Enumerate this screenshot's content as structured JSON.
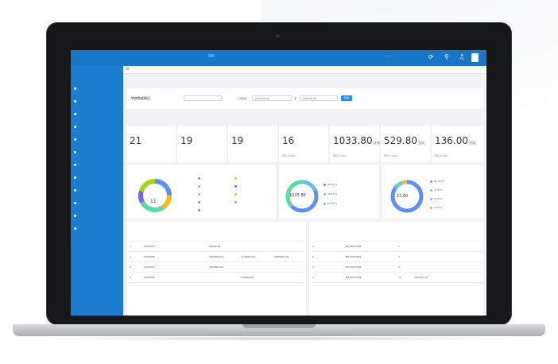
{
  "topnav": {
    "items": [
      "",
      "",
      "",
      "",
      "",
      "",
      "",
      "",
      "",
      "",
      "···"
    ],
    "active_index": 3
  },
  "sidebar": {
    "title": "",
    "items": [
      "",
      "",
      "",
      "",
      "",
      "",
      "",
      "",
      "",
      "",
      "",
      ""
    ]
  },
  "filter": {
    "title": "销售数据概况",
    "date_label": "日期选择",
    "date_start": "2020-01-01",
    "date_sep": "至",
    "date_end": "2020-07-14",
    "query_label": "查询"
  },
  "cards": [
    {
      "label": "",
      "value": "21",
      "unit": "",
      "sub1": "",
      "sub2": ""
    },
    {
      "label": "",
      "value": "19",
      "unit": "",
      "sub1": "",
      "sub2": ""
    },
    {
      "label": "",
      "value": "19",
      "unit": "",
      "sub1": "",
      "sub2": ""
    },
    {
      "label": "",
      "value": "16",
      "unit": "",
      "sub1": "",
      "sub2": "同比 0.00%"
    },
    {
      "label": "",
      "value": "1033.80",
      "unit": "万元",
      "sub1": "",
      "sub2": "同比 0.00%"
    },
    {
      "label": "",
      "value": "529.80",
      "unit": "万元",
      "sub1": "",
      "sub2": "同比 0.00%"
    },
    {
      "label": "",
      "value": "136.00",
      "unit": "万元",
      "sub1": "",
      "sub2": "同比 0.00%"
    }
  ],
  "donut1": {
    "title": "",
    "center_value": "11",
    "legend": [
      "",
      "",
      "",
      "",
      "",
      "",
      "",
      "",
      "",
      ""
    ],
    "colors": [
      "#5b8ff9",
      "#f6bd16",
      "#5ad8a6",
      "#7262fd",
      "#5dc4f0",
      "#a0d911",
      "#5b8ff9",
      "#f6903d",
      "#e8684a",
      "#9270ca"
    ]
  },
  "donut2": {
    "title": "",
    "center_value": "1033.80",
    "legend": [
      "",
      "",
      ""
    ],
    "percents": [
      "45.27 %",
      "26.76 %",
      "17.87 %"
    ],
    "colors": [
      "#5b8ff9",
      "#5ad8a6",
      "#5dc4f0"
    ]
  },
  "donut3": {
    "title": "",
    "center_value": "21.00",
    "legend": [
      "",
      "",
      "",
      ""
    ],
    "percents": [
      "85.71 %",
      "4.76 %",
      "4.76 %",
      "4.76 %"
    ],
    "colors": [
      "#5b8ff9",
      "#5ad8a6",
      "#5dc4f0",
      "#f6bd16"
    ]
  },
  "table_left": {
    "title": "",
    "columns": [
      "",
      "",
      "",
      "",
      "",
      ""
    ],
    "rows": [
      [
        "1",
        "CS00010",
        "",
        "58000.00",
        "",
        ""
      ],
      [
        "2",
        "CS00006",
        "",
        "3600000.00",
        "1140000.00",
        "2600000.00"
      ],
      [
        "3",
        "CS00011",
        "",
        "3000000.00",
        "",
        ""
      ],
      [
        "4",
        "CS00003",
        "",
        "",
        "220000.00",
        ""
      ]
    ]
  },
  "table_right": {
    "title": "",
    "columns": [
      "",
      "",
      "",
      "",
      "",
      "",
      ""
    ],
    "rows": [
      [
        "1",
        "",
        "BX72007002",
        "",
        "1",
        "",
        ""
      ],
      [
        "2",
        "",
        "BX72007002",
        "",
        "1",
        "",
        ""
      ],
      [
        "3",
        "",
        "BX72007002",
        "",
        "4",
        "",
        ""
      ],
      [
        "4",
        "",
        "BX72007003",
        "",
        "10",
        "2020-07-21",
        ""
      ]
    ]
  },
  "colors": {
    "topbar": "#1776c8",
    "sidebar": "#1b7cd0",
    "accent": "#2d8cf0"
  }
}
